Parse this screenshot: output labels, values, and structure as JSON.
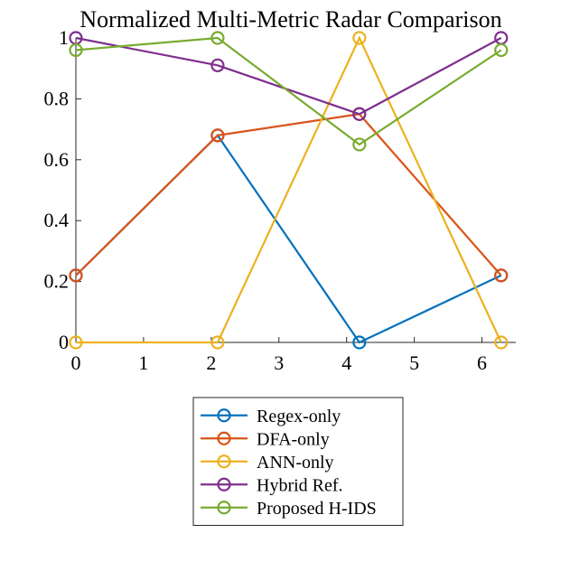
{
  "chart_data": {
    "type": "line",
    "title": "Normalized Multi-Metric Radar Comparison",
    "xlabel": "",
    "ylabel": "",
    "xlim": [
      0,
      6.5
    ],
    "ylim": [
      0,
      1
    ],
    "xticks": [
      0,
      1,
      2,
      3,
      4,
      5,
      6
    ],
    "yticks": [
      0,
      0.2,
      0.4,
      0.6,
      0.8,
      1
    ],
    "ytick_labels": [
      "0",
      "0.2",
      "0.4",
      "0.6",
      "0.8",
      "1"
    ],
    "x": [
      0,
      2.0944,
      4.1888,
      6.2832
    ],
    "grid": false,
    "legend_position": "below",
    "series": [
      {
        "name": "Regex-only",
        "color": "#0072BD",
        "values": [
          0.22,
          0.68,
          0.0,
          0.22
        ]
      },
      {
        "name": "DFA-only",
        "color": "#D95319",
        "values": [
          0.22,
          0.68,
          0.75,
          0.22
        ]
      },
      {
        "name": "ANN-only",
        "color": "#EDB120",
        "values": [
          0.0,
          0.0,
          1.0,
          0.0
        ]
      },
      {
        "name": "Hybrid Ref.",
        "color": "#7E2F8E",
        "values": [
          1.0,
          0.91,
          0.75,
          1.0
        ]
      },
      {
        "name": "Proposed H-IDS",
        "color": "#77AC30",
        "values": [
          0.96,
          1.0,
          0.65,
          0.96
        ]
      }
    ]
  }
}
